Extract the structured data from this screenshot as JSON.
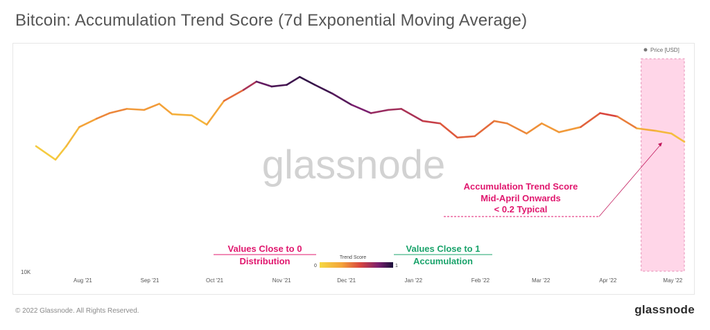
{
  "header": {
    "title": "Bitcoin: Accumulation Trend Score (7d Exponential Moving Average)"
  },
  "footer": {
    "copyright": "© 2022 Glassnode. All Rights Reserved.",
    "logo": "glassnode"
  },
  "watermark": "glassnode",
  "colors": {
    "score_low": "#f5d842",
    "score_mid": "#d9463e",
    "score_high": "#1a0f3a",
    "highlight_fill": "#ffd6e8",
    "highlight_border": "#e68bb3",
    "annotation_pink": "#e0176e",
    "annotation_green": "#1aa36b"
  },
  "annotations": {
    "right_line1": "Accumulation Trend Score",
    "right_line2": "Mid-April Onwards",
    "right_line3": "< 0.2 Typical",
    "left_line1": "Values Close to 0",
    "left_line2": "Distribution",
    "green_line1": "Values Close to 1",
    "green_line2": "Accumulation"
  },
  "chart_data": {
    "type": "line",
    "title": "Bitcoin: Accumulation Trend Score (7d Exponential Moving Average)",
    "legend": {
      "series": "Price [USD]",
      "placement": "top-right",
      "colorbar": {
        "title": "Trend Score",
        "min_label": "0",
        "max_label": "1",
        "placement": "bottom-center"
      }
    },
    "xaxis": {
      "ticks": [
        "Aug '21",
        "Sep '21",
        "Oct '21",
        "Nov '21",
        "Dec '21",
        "Jan '22",
        "Feb '22",
        "Mar '22",
        "Apr '22",
        "May '22"
      ],
      "range": [
        "2021-07-11",
        "2022-05-07"
      ]
    },
    "yaxis": {
      "scale": "log",
      "tick_label": "10K",
      "range": [
        10000,
        80000
      ]
    },
    "highlight": {
      "from": "2022-04-17",
      "to": "2022-05-07"
    },
    "series": [
      {
        "name": "Price [USD]",
        "points": [
          {
            "x": "2021-07-11",
            "y": 34000,
            "score": 0.05
          },
          {
            "x": "2021-07-20",
            "y": 29800,
            "score": 0.1
          },
          {
            "x": "2021-07-25",
            "y": 34000,
            "score": 0.1
          },
          {
            "x": "2021-07-31",
            "y": 41000,
            "score": 0.25
          },
          {
            "x": "2021-08-08",
            "y": 44500,
            "score": 0.35
          },
          {
            "x": "2021-08-14",
            "y": 47000,
            "score": 0.4
          },
          {
            "x": "2021-08-22",
            "y": 49000,
            "score": 0.35
          },
          {
            "x": "2021-08-30",
            "y": 48500,
            "score": 0.3
          },
          {
            "x": "2021-09-06",
            "y": 51500,
            "score": 0.35
          },
          {
            "x": "2021-09-12",
            "y": 46500,
            "score": 0.25
          },
          {
            "x": "2021-09-21",
            "y": 46000,
            "score": 0.2
          },
          {
            "x": "2021-09-28",
            "y": 42000,
            "score": 0.2
          },
          {
            "x": "2021-10-06",
            "y": 53000,
            "score": 0.35
          },
          {
            "x": "2021-10-15",
            "y": 59000,
            "score": 0.55
          },
          {
            "x": "2021-10-21",
            "y": 64000,
            "score": 0.8
          },
          {
            "x": "2021-10-28",
            "y": 61000,
            "score": 0.9
          },
          {
            "x": "2021-11-04",
            "y": 62000,
            "score": 0.9
          },
          {
            "x": "2021-11-10",
            "y": 67000,
            "score": 0.95
          },
          {
            "x": "2021-11-17",
            "y": 62000,
            "score": 0.95
          },
          {
            "x": "2021-11-25",
            "y": 57000,
            "score": 0.9
          },
          {
            "x": "2021-12-04",
            "y": 51000,
            "score": 0.85
          },
          {
            "x": "2021-12-13",
            "y": 47000,
            "score": 0.75
          },
          {
            "x": "2021-12-21",
            "y": 48500,
            "score": 0.7
          },
          {
            "x": "2021-12-27",
            "y": 49000,
            "score": 0.7
          },
          {
            "x": "2022-01-06",
            "y": 43500,
            "score": 0.65
          },
          {
            "x": "2022-01-14",
            "y": 42500,
            "score": 0.55
          },
          {
            "x": "2022-01-22",
            "y": 37000,
            "score": 0.45
          },
          {
            "x": "2022-01-30",
            "y": 37500,
            "score": 0.5
          },
          {
            "x": "2022-02-08",
            "y": 43500,
            "score": 0.4
          },
          {
            "x": "2022-02-14",
            "y": 42500,
            "score": 0.4
          },
          {
            "x": "2022-02-23",
            "y": 38500,
            "score": 0.35
          },
          {
            "x": "2022-03-02",
            "y": 42500,
            "score": 0.35
          },
          {
            "x": "2022-03-10",
            "y": 39000,
            "score": 0.3
          },
          {
            "x": "2022-03-20",
            "y": 41000,
            "score": 0.35
          },
          {
            "x": "2022-03-29",
            "y": 47000,
            "score": 0.6
          },
          {
            "x": "2022-04-06",
            "y": 45500,
            "score": 0.5
          },
          {
            "x": "2022-04-15",
            "y": 40500,
            "score": 0.3
          },
          {
            "x": "2022-04-24",
            "y": 39500,
            "score": 0.2
          },
          {
            "x": "2022-05-01",
            "y": 38500,
            "score": 0.15
          },
          {
            "x": "2022-05-07",
            "y": 35500,
            "score": 0.15
          }
        ]
      }
    ]
  }
}
